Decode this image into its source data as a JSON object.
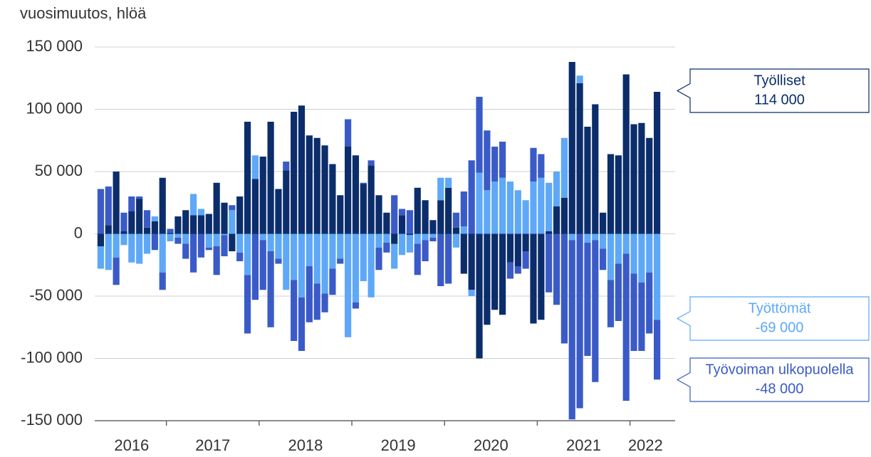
{
  "chart_data": {
    "type": "bar",
    "stacked": true,
    "y_label": "vuosimuutos, hlöä",
    "categories": [
      "2016",
      null,
      null,
      null,
      null,
      null,
      null,
      null,
      null,
      "2017",
      null,
      null,
      null,
      null,
      null,
      null,
      null,
      null,
      null,
      null,
      null,
      "2018",
      null,
      null,
      null,
      null,
      null,
      null,
      null,
      null,
      null,
      null,
      null,
      "2019",
      null,
      null,
      null,
      null,
      null,
      null,
      null,
      null,
      null,
      null,
      null,
      "2020",
      null,
      null,
      null,
      null,
      null,
      null,
      null,
      null,
      null,
      null,
      null,
      "2021",
      null,
      null,
      null,
      null,
      null,
      null,
      null,
      null,
      null,
      null,
      null,
      "2022",
      null,
      null,
      null
    ],
    "series": [
      {
        "name": "Työlliset",
        "color": "#0b2d6b",
        "end_label": "114 000",
        "values": [
          -10000,
          7000,
          50000,
          2000,
          18000,
          28000,
          5000,
          10000,
          45000,
          1000,
          14000,
          19000,
          15000,
          15000,
          16000,
          41000,
          25000,
          -14000,
          30000,
          90000,
          44000,
          62000,
          90000,
          36000,
          51000,
          98000,
          103000,
          79000,
          77000,
          71000,
          56000,
          31000,
          70000,
          63000,
          40000,
          55000,
          31000,
          17000,
          -8000,
          15000,
          -1000,
          37000,
          27000,
          11000,
          27000,
          37000,
          5000,
          -32000,
          -45000,
          -100000,
          -73000,
          -61000,
          -65000,
          -23000,
          -26000,
          -14000,
          -72000,
          -69000,
          2000,
          22000,
          29000,
          138000,
          121000,
          86000,
          104000,
          17000,
          64000,
          63000,
          128000,
          88000,
          89000,
          77000,
          114000
        ]
      },
      {
        "name": "Työttömät",
        "color": "#5ea8f7",
        "end_label": "-69 000",
        "values": [
          -18000,
          -29000,
          -19000,
          -9000,
          -23000,
          -24000,
          -16000,
          4000,
          -31000,
          -6000,
          -3000,
          -8000,
          17000,
          5000,
          -11000,
          -10000,
          -1000,
          19000,
          -15000,
          -33000,
          19000,
          -5000,
          -14000,
          -20000,
          -45000,
          -37000,
          -51000,
          -26000,
          -40000,
          -48000,
          -28000,
          -20000,
          -83000,
          -55000,
          -38000,
          -51000,
          -11000,
          -7000,
          -20000,
          -17000,
          -14000,
          -8000,
          -5000,
          -3000,
          18000,
          8000,
          -11000,
          6000,
          -5000,
          49000,
          35000,
          42000,
          45000,
          42000,
          35000,
          27000,
          42000,
          45000,
          39000,
          28000,
          48000,
          -5000,
          6000,
          -7000,
          -5000,
          -12000,
          -37000,
          -24000,
          -16000,
          -32000,
          -39000,
          -31000,
          -69000
        ]
      },
      {
        "name": "Työvoiman ulkopuolella",
        "color": "#3a5bc7",
        "end_label": "-48 000",
        "values": [
          36000,
          31000,
          -22000,
          15000,
          12000,
          2000,
          14000,
          -13000,
          -14000,
          3000,
          -5000,
          -12000,
          -31000,
          -19000,
          -2000,
          -23000,
          -17000,
          4000,
          -7000,
          -47000,
          -53000,
          -40000,
          -61000,
          -4000,
          7000,
          -49000,
          -43000,
          -45000,
          -29000,
          -15000,
          -21000,
          -4000,
          22000,
          -5000,
          1000,
          4000,
          -18000,
          -8000,
          31000,
          5000,
          19000,
          -25000,
          -17000,
          -3000,
          -42000,
          -40000,
          12000,
          28000,
          59000,
          61000,
          48000,
          28000,
          29000,
          -13000,
          -6000,
          -14000,
          27000,
          19000,
          -47000,
          -57000,
          -88000,
          -144000,
          -140000,
          -91000,
          -114000,
          -17000,
          -38000,
          -46000,
          -118000,
          -62000,
          -55000,
          -49000,
          -48000
        ]
      }
    ],
    "ylim": [
      -150000,
      150000
    ],
    "yticks": [
      {
        "value": -150000,
        "label": "-150 000"
      },
      {
        "value": -100000,
        "label": "-100 000"
      },
      {
        "value": -50000,
        "label": "-50 000"
      },
      0,
      {
        "value": 50000,
        "label": "50 000"
      },
      {
        "value": 100000,
        "label": "100 000"
      },
      {
        "value": 150000,
        "label": "150 000"
      }
    ],
    "grid": true
  }
}
